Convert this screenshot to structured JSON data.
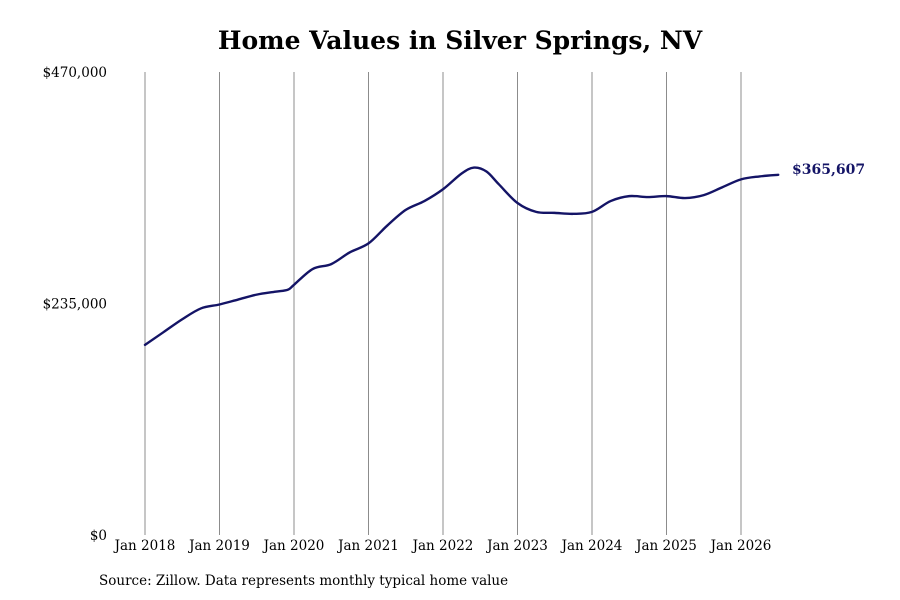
{
  "chart_data": {
    "type": "line",
    "title": "Home Values in Silver Springs, NV",
    "source": "Source: Zillow. Data represents monthly typical home value",
    "xlabel": "",
    "ylabel": "",
    "grid": "vertical",
    "ylim": [
      0,
      470000
    ],
    "y_ticks": [
      {
        "value": 0,
        "label": "$0"
      },
      {
        "value": 235000,
        "label": "$235,000"
      },
      {
        "value": 470000,
        "label": "$470,000"
      }
    ],
    "x_ticks": [
      {
        "value": "2018-01",
        "label": "Jan 2018"
      },
      {
        "value": "2019-01",
        "label": "Jan 2019"
      },
      {
        "value": "2020-01",
        "label": "Jan 2020"
      },
      {
        "value": "2021-01",
        "label": "Jan 2021"
      },
      {
        "value": "2022-01",
        "label": "Jan 2022"
      },
      {
        "value": "2023-01",
        "label": "Jan 2023"
      },
      {
        "value": "2024-01",
        "label": "Jan 2024"
      },
      {
        "value": "2025-01",
        "label": "Jan 2025"
      },
      {
        "value": "2026-01",
        "label": "Jan 2026"
      }
    ],
    "line_color": "#141466",
    "end_label": "$365,607",
    "series": [
      {
        "x": [
          "2018-01",
          "2018-04",
          "2018-07",
          "2018-10",
          "2019-01",
          "2019-04",
          "2019-07",
          "2019-10",
          "2019-12",
          "2020-01",
          "2020-04",
          "2020-07",
          "2020-10",
          "2021-01",
          "2021-04",
          "2021-07",
          "2021-10",
          "2022-01",
          "2022-04",
          "2022-06",
          "2022-08",
          "2022-10",
          "2023-01",
          "2023-04",
          "2023-07",
          "2023-10",
          "2024-01",
          "2024-04",
          "2024-07",
          "2024-10",
          "2025-01",
          "2025-04",
          "2025-07",
          "2025-10",
          "2026-01",
          "2026-04",
          "2026-07"
        ],
        "values": [
          193000,
          206000,
          219000,
          230000,
          234000,
          239000,
          244000,
          247000,
          249000,
          254000,
          270000,
          275000,
          287000,
          296000,
          314000,
          330000,
          339000,
          351000,
          367000,
          373000,
          369000,
          356000,
          337000,
          328000,
          327000,
          326000,
          328000,
          339000,
          344000,
          343000,
          344000,
          342000,
          345000,
          353000,
          361000,
          364000,
          365607
        ]
      }
    ]
  }
}
